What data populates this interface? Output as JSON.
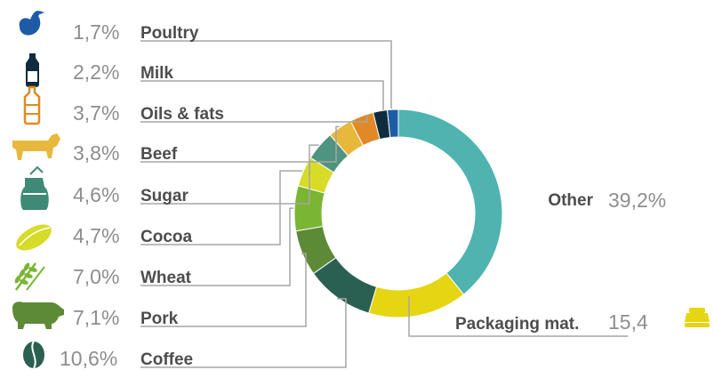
{
  "chart_data": {
    "type": "pie",
    "donut": true,
    "title": "",
    "slices": [
      {
        "label": "Other",
        "display": "39,2%",
        "value": 39.2,
        "color": "#4fb3b0",
        "icon": "none"
      },
      {
        "label": "Packaging mat.",
        "display": "15,4",
        "value": 15.4,
        "color": "#e6d512",
        "icon": "packaging-jar-icon"
      },
      {
        "label": "Coffee",
        "display": "10,6%",
        "value": 10.6,
        "color": "#2a6051",
        "icon": "coffee-bean-icon"
      },
      {
        "label": "Pork",
        "display": "7,1%",
        "value": 7.1,
        "color": "#5d8a36",
        "icon": "pig-icon"
      },
      {
        "label": "Wheat",
        "display": "7,0%",
        "value": 7.0,
        "color": "#7ab534",
        "icon": "wheat-icon"
      },
      {
        "label": "Cocoa",
        "display": "4,7%",
        "value": 4.7,
        "color": "#d8db28",
        "icon": "cocoa-pod-icon"
      },
      {
        "label": "Sugar",
        "display": "4,6%",
        "value": 4.6,
        "color": "#4f9480",
        "icon": "sugar-sack-icon"
      },
      {
        "label": "Beef",
        "display": "3,8%",
        "value": 3.8,
        "color": "#e8b83c",
        "icon": "cow-icon"
      },
      {
        "label": "Oils & fats",
        "display": "3,7%",
        "value": 3.7,
        "color": "#df8a27",
        "icon": "oil-bottle-icon"
      },
      {
        "label": "Milk",
        "display": "2,2%",
        "value": 2.2,
        "color": "#0f2c3f",
        "icon": "milk-bottle-icon"
      },
      {
        "label": "Poultry",
        "display": "1,7%",
        "value": 1.7,
        "color": "#1d5ba6",
        "icon": "chicken-icon"
      }
    ]
  }
}
